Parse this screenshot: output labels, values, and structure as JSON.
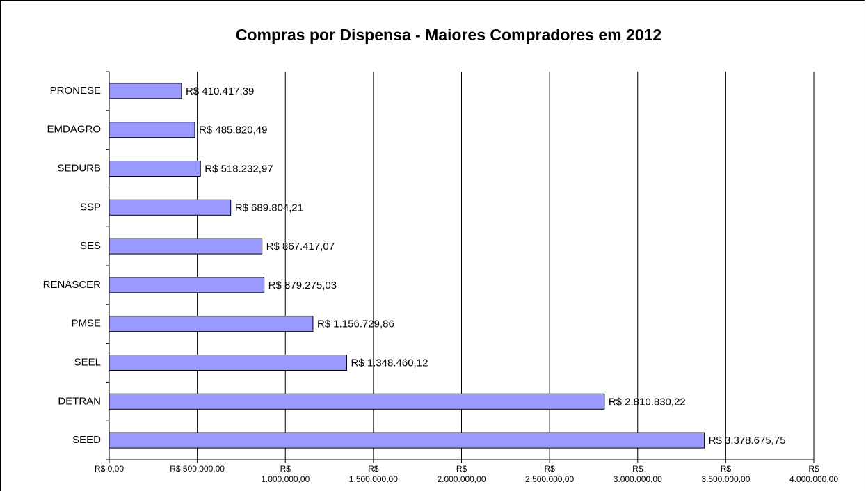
{
  "chart_data": {
    "type": "hbar",
    "title": "Compras por Dispensa - Maiores Compradores em 2012",
    "categories": [
      "PRONESE",
      "EMDAGRO",
      "SEDURB",
      "SSP",
      "SES",
      "RENASCER",
      "PMSE",
      "SEEL",
      "DETRAN",
      "SEED"
    ],
    "values": [
      410417.39,
      485820.49,
      518232.97,
      689804.21,
      867417.07,
      879275.03,
      1156729.86,
      1348460.12,
      2810830.22,
      3378675.75
    ],
    "value_labels": [
      "R$ 410.417,39",
      "R$ 485.820,49",
      "R$ 518.232,97",
      "R$ 689.804,21",
      "R$ 867.417,07",
      "R$ 879.275,03",
      "R$ 1.156.729,86",
      "R$ 1.348.460,12",
      "R$ 2.810.830,22",
      "R$ 3.378.675,75"
    ],
    "color": "#9999ff",
    "xlim": [
      0,
      4000000
    ],
    "xticks": [
      {
        "value": 0,
        "label": "R$ 0,00"
      },
      {
        "value": 500000,
        "label": "R$ 500.000,00"
      },
      {
        "value": 1000000,
        "label": "R$ 1.000.000,00"
      },
      {
        "value": 1500000,
        "label": "R$ 1.500.000,00"
      },
      {
        "value": 2000000,
        "label": "R$ 2.000.000,00"
      },
      {
        "value": 2500000,
        "label": "R$ 2.500.000,00"
      },
      {
        "value": 3000000,
        "label": "R$ 3.000.000,00"
      },
      {
        "value": 3500000,
        "label": "R$ 3.500.000,00"
      },
      {
        "value": 4000000,
        "label": "R$ 4.000.000,00"
      }
    ],
    "grid": true
  }
}
